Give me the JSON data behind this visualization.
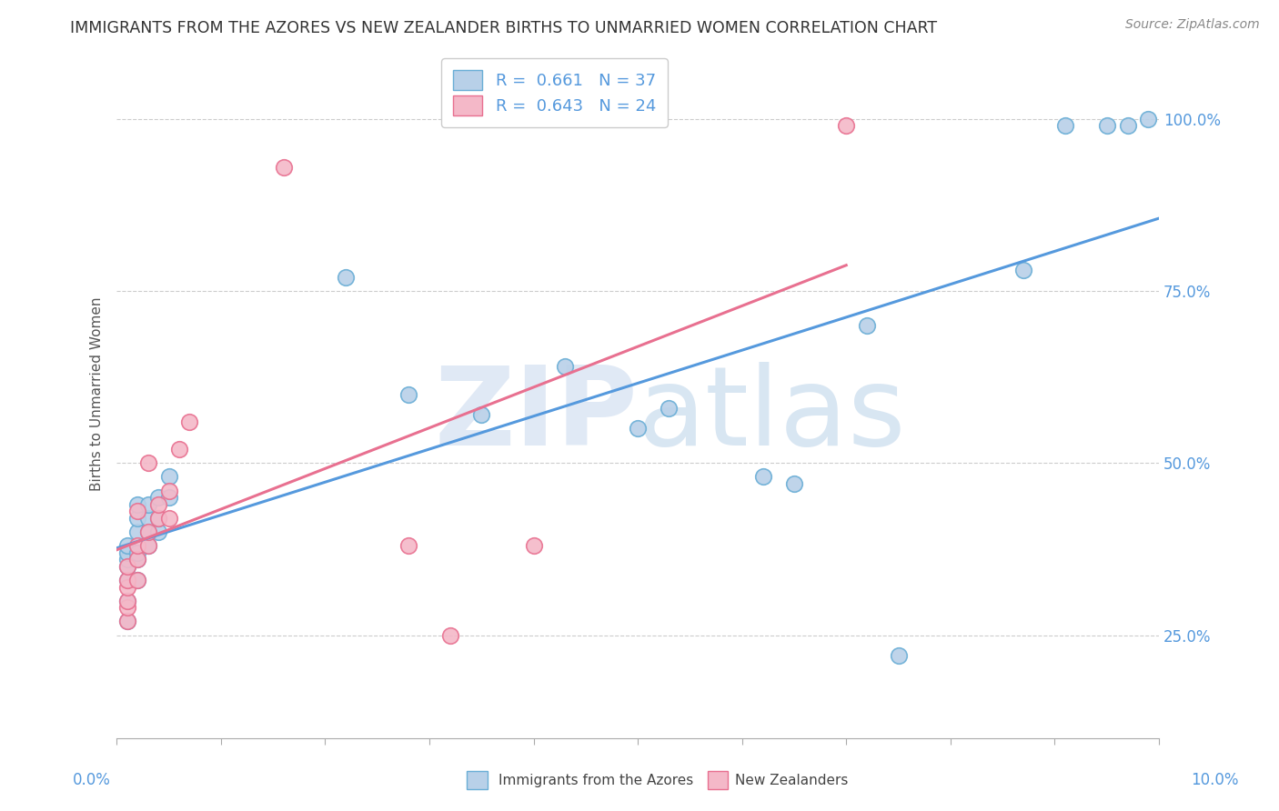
{
  "title": "IMMIGRANTS FROM THE AZORES VS NEW ZEALANDER BIRTHS TO UNMARRIED WOMEN CORRELATION CHART",
  "source": "Source: ZipAtlas.com",
  "ylabel": "Births to Unmarried Women",
  "legend_blue_label": "R =  0.661   N = 37",
  "legend_pink_label": "R =  0.643   N = 24",
  "blue_face_color": "#b8d0e8",
  "blue_edge_color": "#6aaed6",
  "pink_face_color": "#f4b8c8",
  "pink_edge_color": "#e87090",
  "blue_line_color": "#5599dd",
  "pink_line_color": "#e87090",
  "right_axis_color": "#5599dd",
  "watermark_color": "#ccddf0",
  "title_color": "#333333",
  "source_color": "#888888",
  "legend_r_n_color": "#5599dd",
  "grid_color": "#cccccc",
  "bottom_label_color": "#5599dd",
  "blue_x": [
    0.001,
    0.001,
    0.001,
    0.001,
    0.001,
    0.001,
    0.001,
    0.002,
    0.002,
    0.002,
    0.002,
    0.002,
    0.002,
    0.003,
    0.003,
    0.003,
    0.003,
    0.004,
    0.004,
    0.004,
    0.005,
    0.005,
    0.022,
    0.028,
    0.035,
    0.043,
    0.05,
    0.053,
    0.062,
    0.065,
    0.072,
    0.075,
    0.087,
    0.091,
    0.095,
    0.097,
    0.099
  ],
  "blue_y": [
    0.27,
    0.3,
    0.33,
    0.35,
    0.36,
    0.37,
    0.38,
    0.33,
    0.36,
    0.37,
    0.4,
    0.42,
    0.44,
    0.38,
    0.4,
    0.42,
    0.44,
    0.4,
    0.42,
    0.45,
    0.45,
    0.48,
    0.77,
    0.6,
    0.57,
    0.64,
    0.55,
    0.58,
    0.48,
    0.47,
    0.7,
    0.22,
    0.78,
    0.99,
    0.99,
    0.99,
    1.0
  ],
  "pink_x": [
    0.001,
    0.001,
    0.001,
    0.001,
    0.001,
    0.001,
    0.002,
    0.002,
    0.002,
    0.002,
    0.003,
    0.003,
    0.003,
    0.004,
    0.004,
    0.005,
    0.005,
    0.006,
    0.007,
    0.016,
    0.028,
    0.032,
    0.04,
    0.07
  ],
  "pink_y": [
    0.27,
    0.29,
    0.3,
    0.32,
    0.33,
    0.35,
    0.33,
    0.36,
    0.38,
    0.43,
    0.38,
    0.4,
    0.5,
    0.42,
    0.44,
    0.42,
    0.46,
    0.52,
    0.56,
    0.93,
    0.38,
    0.25,
    0.38,
    0.99
  ],
  "xlim": [
    0.0,
    0.1
  ],
  "ylim": [
    0.1,
    1.1
  ],
  "yticks": [
    0.25,
    0.5,
    0.75,
    1.0
  ],
  "yticklabels": [
    "25.0%",
    "50.0%",
    "75.0%",
    "100.0%"
  ],
  "xtick_positions": [
    0.0,
    0.01,
    0.02,
    0.03,
    0.04,
    0.05,
    0.06,
    0.07,
    0.08,
    0.09,
    0.1
  ]
}
